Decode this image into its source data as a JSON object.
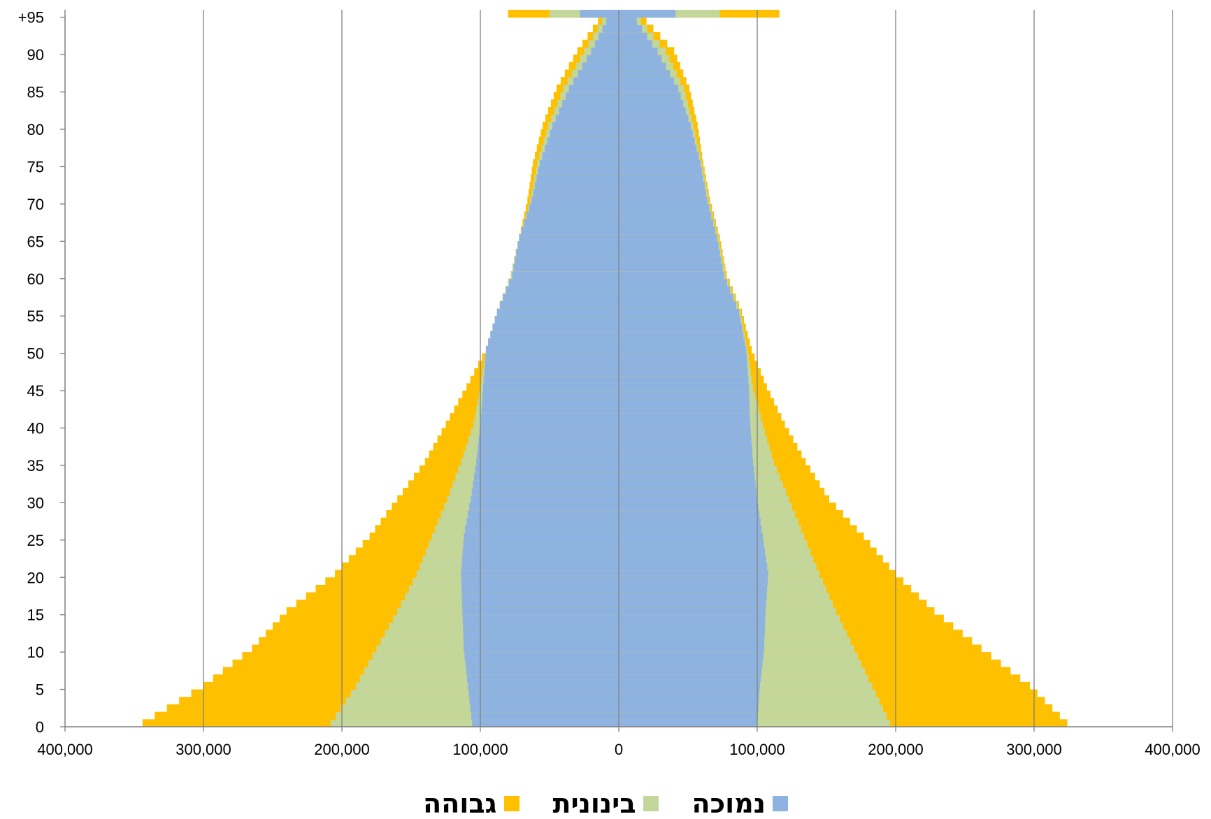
{
  "chart_data": {
    "type": "bar",
    "orientation": "horizontal",
    "subtype": "population pyramid (stacked)",
    "xlim": [
      -400000,
      400000
    ],
    "x_ticks": [
      -400000,
      -300000,
      -200000,
      -100000,
      0,
      100000,
      200000,
      300000,
      400000
    ],
    "x_tick_labels": [
      "400,000",
      "300,000",
      "200,000",
      "100,000",
      "0",
      "100,000",
      "200,000",
      "300,000",
      "400,000"
    ],
    "y_tick_labels": [
      "0",
      "5",
      "10",
      "15",
      "20",
      "25",
      "30",
      "35",
      "40",
      "45",
      "50",
      "55",
      "60",
      "65",
      "70",
      "75",
      "80",
      "85",
      "90",
      "+95"
    ],
    "grid": "vertical",
    "legend_position": "bottom",
    "colors": {
      "low": "#8EB3E1",
      "medium": "#C4D79B",
      "high": "#FFC000",
      "grid": "#808080"
    },
    "series": [
      {
        "name": "נמוכה",
        "key": "low"
      },
      {
        "name": "בינונית",
        "key": "medium"
      },
      {
        "name": "גבוהה",
        "key": "high"
      }
    ],
    "left_anchor_ages": [
      0,
      5,
      10,
      15,
      20,
      25,
      30,
      35,
      40,
      45,
      50,
      55,
      60,
      65,
      70,
      75,
      80,
      85,
      90,
      94,
      95
    ],
    "left_low_anchors": [
      106000,
      109000,
      112000,
      113000,
      114000,
      112000,
      107000,
      103000,
      100000,
      98000,
      96000,
      88000,
      77000,
      72000,
      63000,
      57000,
      48000,
      36000,
      20000,
      9000,
      28000
    ],
    "left_cum_medium_anchors": [
      208000,
      190000,
      175000,
      160000,
      146000,
      135000,
      124000,
      114000,
      105000,
      100000,
      96000,
      88000,
      78000,
      72000,
      64000,
      59000,
      51000,
      40000,
      25000,
      12000,
      50000
    ],
    "left_cum_high_anchors": [
      344000,
      300000,
      265000,
      240000,
      205000,
      180000,
      160000,
      140000,
      125000,
      110000,
      96000,
      88000,
      78000,
      72000,
      66000,
      62000,
      55000,
      45000,
      30000,
      15000,
      80000
    ],
    "right_anchor_ages": [
      0,
      5,
      10,
      15,
      20,
      25,
      30,
      35,
      40,
      45,
      50,
      55,
      60,
      65,
      70,
      75,
      80,
      85,
      90,
      94,
      95
    ],
    "right_low_anchors": [
      100000,
      102000,
      105000,
      106000,
      108000,
      104000,
      100000,
      97000,
      95000,
      94000,
      92000,
      87000,
      76000,
      71000,
      64000,
      59000,
      52000,
      43000,
      28000,
      13000,
      41000
    ],
    "right_cum_medium_anchors": [
      196000,
      183000,
      170000,
      157000,
      145000,
      134000,
      123000,
      112000,
      104000,
      97000,
      93000,
      88000,
      77000,
      72000,
      65000,
      60000,
      54000,
      47000,
      34000,
      16000,
      73000
    ],
    "right_cum_high_anchors": [
      324000,
      297000,
      262000,
      228000,
      200000,
      177000,
      152000,
      135000,
      120000,
      107000,
      96000,
      89000,
      78000,
      73000,
      66000,
      61000,
      57000,
      51000,
      40000,
      20000,
      116000
    ]
  }
}
